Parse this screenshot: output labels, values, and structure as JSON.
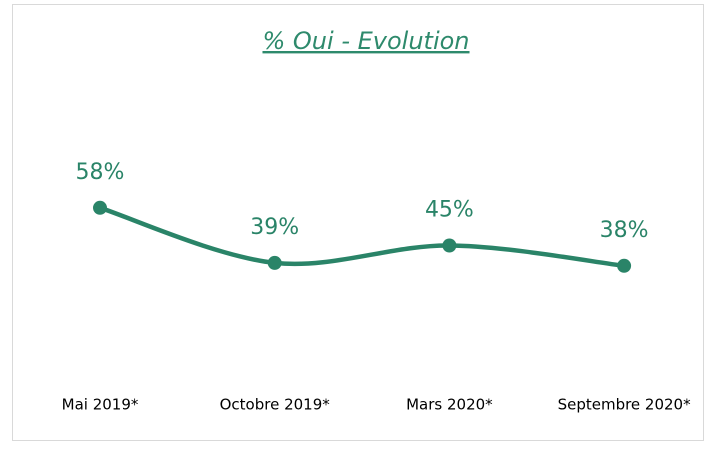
{
  "chart_data": {
    "type": "line",
    "title": "% Oui - Evolution",
    "categories": [
      "Mai 2019*",
      "Octobre 2019*",
      "Mars 2020*",
      "Septembre 2020*"
    ],
    "series": [
      {
        "name": "% Oui",
        "color": "#2a8468",
        "values": [
          58,
          39,
          45,
          38
        ],
        "value_labels": [
          "58%",
          "39%",
          "45%",
          "38%"
        ]
      }
    ],
    "ylim": [
      0,
      100
    ]
  }
}
